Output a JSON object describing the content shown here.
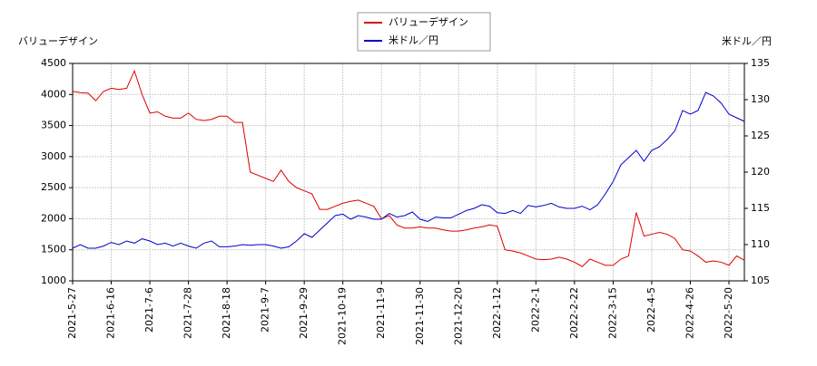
{
  "chart_data": {
    "type": "line",
    "y_label": "バリューデザイン",
    "y2_label": "米ドル／円",
    "categories": [
      "2021-5-27",
      null,
      null,
      null,
      null,
      "2021-6-16",
      null,
      null,
      null,
      null,
      "2021-7-6",
      null,
      null,
      null,
      null,
      "2021-7-28",
      null,
      null,
      null,
      null,
      "2021-8-18",
      null,
      null,
      null,
      null,
      "2021-9-7",
      null,
      null,
      null,
      null,
      "2021-9-29",
      null,
      null,
      null,
      null,
      "2021-10-19",
      null,
      null,
      null,
      null,
      "2021-11-9",
      null,
      null,
      null,
      null,
      "2021-11-30",
      null,
      null,
      null,
      null,
      "2021-12-20",
      null,
      null,
      null,
      null,
      "2022-1-12",
      null,
      null,
      null,
      null,
      "2022-2-1",
      null,
      null,
      null,
      null,
      "2022-2-22",
      null,
      null,
      null,
      null,
      "2022-3-15",
      null,
      null,
      null,
      null,
      "2022-4-5",
      null,
      null,
      null,
      null,
      "2022-4-26",
      null,
      null,
      null,
      null,
      "2022-5-20",
      null,
      null
    ],
    "series": [
      {
        "name": "バリューデザイン",
        "color": "#dd0000",
        "values": [
          4050,
          4030,
          4020,
          3900,
          4050,
          4100,
          4080,
          4100,
          4380,
          4000,
          3700,
          3720,
          3650,
          3620,
          3620,
          3700,
          3600,
          3580,
          3600,
          3650,
          3650,
          3550,
          3550,
          2750,
          2700,
          2650,
          2600,
          2780,
          2600,
          2500,
          2450,
          2400,
          2150,
          2150,
          2200,
          2250,
          2280,
          2300,
          2250,
          2200,
          2000,
          2050,
          1900,
          1850,
          1850,
          1870,
          1850,
          1850,
          1820,
          1800,
          1800,
          1820,
          1850,
          1870,
          1900,
          1880,
          1500,
          1480,
          1450,
          1400,
          1350,
          1340,
          1350,
          1380,
          1350,
          1300,
          1230,
          1350,
          1300,
          1250,
          1250,
          1350,
          1400,
          2100,
          1720,
          1750,
          1780,
          1750,
          1680,
          1500,
          1480,
          1400,
          1300,
          1320,
          1300,
          1250,
          1400,
          1330
        ]
      },
      {
        "name": "米ドル／円",
        "color": "#0000cc",
        "axis": "y2",
        "values": [
          109.5,
          110,
          109.5,
          109.5,
          109.8,
          110.3,
          110,
          110.5,
          110.2,
          110.8,
          110.5,
          110,
          110.2,
          109.8,
          110.2,
          109.8,
          109.5,
          110.2,
          110.5,
          109.7,
          109.7,
          109.8,
          110,
          109.9,
          110,
          110,
          109.8,
          109.5,
          109.7,
          110.5,
          111.5,
          111,
          112,
          113,
          114,
          114.2,
          113.5,
          114,
          113.8,
          113.5,
          113.5,
          114.3,
          113.8,
          114,
          114.5,
          113.5,
          113.2,
          113.8,
          113.7,
          113.7,
          114.2,
          114.7,
          115,
          115.5,
          115.3,
          114.4,
          114.3,
          114.7,
          114.3,
          115.4,
          115.2,
          115.4,
          115.7,
          115.2,
          115,
          115,
          115.3,
          114.8,
          115.5,
          117,
          118.7,
          121,
          122,
          123,
          121.5,
          123,
          123.5,
          124.5,
          125.7,
          128.5,
          128,
          128.5,
          131,
          130.5,
          129.5,
          128,
          127.5,
          127
        ]
      }
    ],
    "ylim": [
      1000,
      4500
    ],
    "yticks": [
      1000,
      1500,
      2000,
      2500,
      3000,
      3500,
      4000,
      4500
    ],
    "y2lim": [
      105,
      135
    ],
    "y2ticks": [
      105,
      110,
      115,
      120,
      125,
      130,
      135
    ],
    "grid": true
  }
}
